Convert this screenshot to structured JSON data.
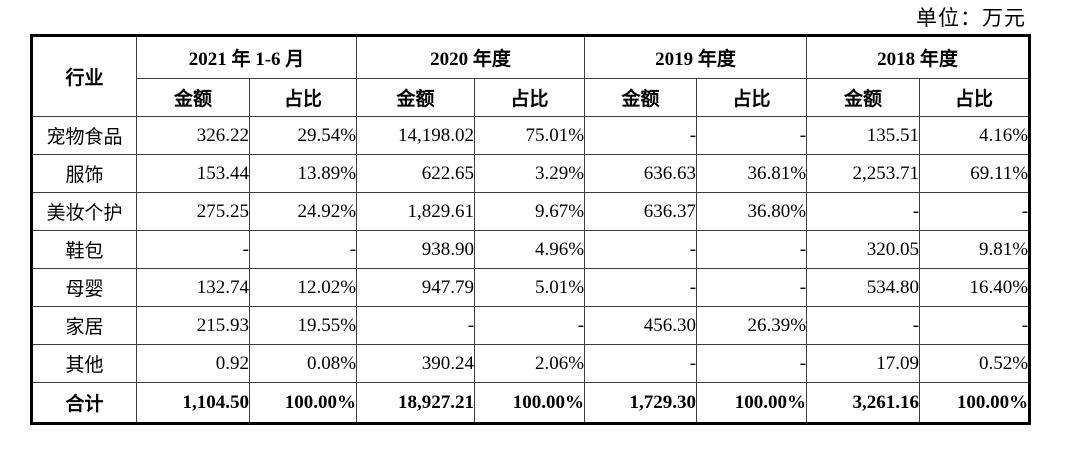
{
  "page": {
    "unit_label": "单位：万元"
  },
  "table": {
    "corner_header": "行业",
    "sub_header_amount": "金额",
    "sub_header_share": "占比",
    "period_groups": [
      "2021 年 1-6 月",
      "2020 年度",
      "2019 年度",
      "2018 年度"
    ],
    "rows": [
      {
        "industry": "宠物食品",
        "values": [
          "326.22",
          "29.54%",
          "14,198.02",
          "75.01%",
          "-",
          "-",
          "135.51",
          "4.16%"
        ]
      },
      {
        "industry": "服饰",
        "values": [
          "153.44",
          "13.89%",
          "622.65",
          "3.29%",
          "636.63",
          "36.81%",
          "2,253.71",
          "69.11%"
        ]
      },
      {
        "industry": "美妆个护",
        "values": [
          "275.25",
          "24.92%",
          "1,829.61",
          "9.67%",
          "636.37",
          "36.80%",
          "-",
          "-"
        ]
      },
      {
        "industry": "鞋包",
        "values": [
          "-",
          "-",
          "938.90",
          "4.96%",
          "-",
          "-",
          "320.05",
          "9.81%"
        ]
      },
      {
        "industry": "母婴",
        "values": [
          "132.74",
          "12.02%",
          "947.79",
          "5.01%",
          "-",
          "-",
          "534.80",
          "16.40%"
        ]
      },
      {
        "industry": "家居",
        "values": [
          "215.93",
          "19.55%",
          "-",
          "-",
          "456.30",
          "26.39%",
          "-",
          "-"
        ]
      },
      {
        "industry": "其他",
        "values": [
          "0.92",
          "0.08%",
          "390.24",
          "2.06%",
          "-",
          "-",
          "17.09",
          "0.52%"
        ]
      }
    ],
    "total_row": {
      "industry": "合计",
      "values": [
        "1,104.50",
        "100.00%",
        "18,927.21",
        "100.00%",
        "1,729.30",
        "100.00%",
        "3,261.16",
        "100.00%"
      ]
    }
  }
}
